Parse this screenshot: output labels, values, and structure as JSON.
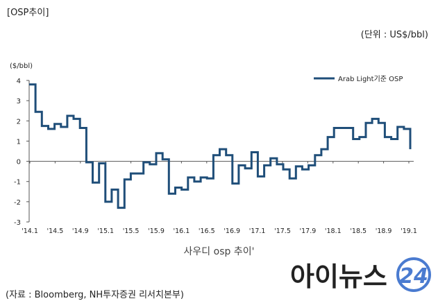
{
  "header": {
    "title": "[OSP추이]",
    "unit_note": "(단위 : US$/bbl)",
    "y_unit": "($/bbl)"
  },
  "caption": "사우디 osp 추이'",
  "source": "(자료 : Bloomberg, NH투자증권 리서치본부)",
  "logo": {
    "text": "아이뉴스",
    "number": "24",
    "icon": "inews24-logo"
  },
  "colors": {
    "series": "#1f4e79",
    "axis": "#555555",
    "logo_dark": "#222222",
    "logo_accent": "#4a7bd0"
  },
  "chart_data": {
    "type": "line",
    "step": true,
    "xlabel": "",
    "ylabel": "($/bbl)",
    "ylim": [
      -3,
      4
    ],
    "yticks": [
      4,
      3,
      2,
      1,
      0,
      -1,
      -2,
      -3
    ],
    "grid": false,
    "legend": "top-right",
    "xticks": [
      "'14.1",
      "'14.5",
      "'14.9",
      "'15.1",
      "'15.5",
      "'15.9",
      "'16.1",
      "'16.5",
      "'16.9",
      "'17.1",
      "'17.5",
      "'17.9",
      "'18.1",
      "'18.5",
      "'18.9",
      "'19.1"
    ],
    "series": [
      {
        "name": "Arab Light기준 OSP",
        "values": [
          3.8,
          3.8,
          2.45,
          2.45,
          1.75,
          1.75,
          1.6,
          1.6,
          1.85,
          1.85,
          1.7,
          1.7,
          2.25,
          2.25,
          2.1,
          2.1,
          1.65,
          1.65,
          -0.05,
          -0.05,
          -1.05,
          -1.05,
          -0.1,
          -0.1,
          -2.0,
          -2.0,
          -1.4,
          -1.4,
          -2.3,
          -2.3,
          -0.9,
          -0.9,
          -0.6,
          -0.6,
          -0.6,
          -0.6,
          -0.05,
          -0.05,
          -0.15,
          -0.15,
          0.4,
          0.4,
          0.1,
          0.1,
          -1.6,
          -1.6,
          -1.3,
          -1.3,
          -1.4,
          -1.4,
          -0.8,
          -0.8,
          -1.0,
          -1.0,
          -0.8,
          -0.8,
          -0.85,
          -0.85,
          0.3,
          0.3,
          0.6,
          0.6,
          0.3,
          0.3,
          -1.1,
          -1.1,
          -0.2,
          -0.2,
          -0.35,
          -0.35,
          0.45,
          0.45,
          -0.75,
          -0.75,
          -0.2,
          -0.2,
          0.15,
          0.15,
          -0.15,
          -0.15,
          -0.4,
          -0.4,
          -0.85,
          -0.85,
          -0.25,
          -0.25,
          -0.4,
          -0.4,
          -0.2,
          -0.2,
          0.3,
          0.3,
          0.6,
          0.6,
          1.2,
          1.2,
          1.65,
          1.65,
          1.65,
          1.65,
          1.65,
          1.65,
          1.1,
          1.1,
          1.2,
          1.2,
          1.9,
          1.9,
          2.1,
          2.1,
          1.9,
          1.9,
          1.2,
          1.2,
          1.1,
          1.1,
          1.7,
          1.7,
          1.6,
          1.6,
          0.6
        ]
      }
    ]
  }
}
